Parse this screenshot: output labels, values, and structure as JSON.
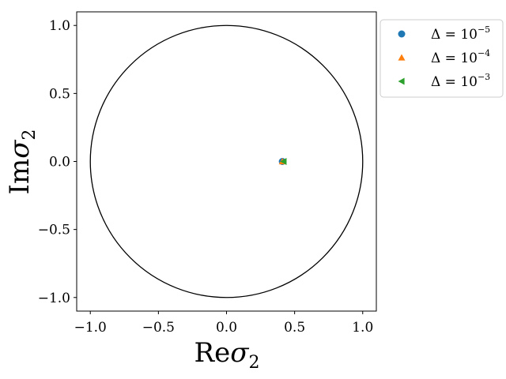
{
  "chart_data": {
    "type": "scatter",
    "xlabel_main": "Re",
    "xlabel_var": "σ",
    "xlabel_sub": "2",
    "ylabel_main": "Im",
    "ylabel_var": "σ",
    "ylabel_sub": "2",
    "xlim": [
      -1.1,
      1.1
    ],
    "ylim": [
      -1.1,
      1.1
    ],
    "xticks": [
      -1.0,
      -0.5,
      0.0,
      0.5,
      1.0
    ],
    "xtick_labels": [
      "−1.0",
      "−0.5",
      "0.0",
      "0.5",
      "1.0"
    ],
    "yticks": [
      1.0,
      0.5,
      0.0,
      -0.5,
      -1.0
    ],
    "ytick_labels": [
      "1.0",
      "0.5",
      "0.0",
      "−0.5",
      "−1.0"
    ],
    "unit_circle": {
      "center": [
        0,
        0
      ],
      "radius": 1.0
    },
    "grid": false,
    "legend_position": "outside-top-right",
    "series": [
      {
        "name_prefix": "Δ = 10",
        "name_exp": "−5",
        "marker": "circle",
        "color": "#1f77b4",
        "points": [
          [
            0.41,
            0.0
          ]
        ]
      },
      {
        "name_prefix": "Δ = 10",
        "name_exp": "−4",
        "marker": "triangle-up",
        "color": "#ff7f0e",
        "points": [
          [
            0.41,
            0.0
          ]
        ]
      },
      {
        "name_prefix": "Δ = 10",
        "name_exp": "−3",
        "marker": "triangle-left",
        "color": "#2ca02c",
        "points": [
          [
            0.42,
            0.0
          ]
        ]
      }
    ]
  }
}
